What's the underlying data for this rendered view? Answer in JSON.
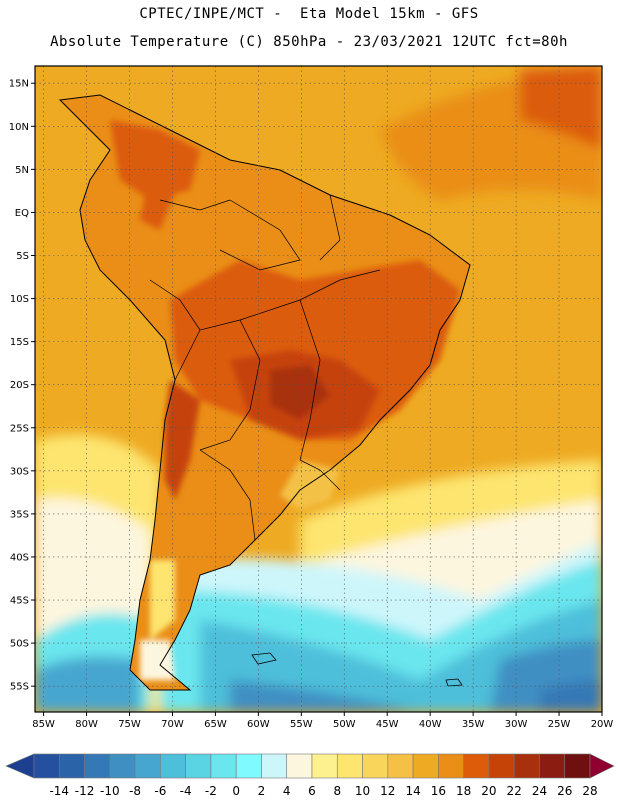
{
  "header": {
    "line1": "CPTEC/INPE/MCT -  Eta Model 15km - GFS",
    "line2": "Absolute Temperature (C) 850hPa - 23/03/2021 12UTC fct=80h"
  },
  "map": {
    "lat_labels": [
      "15N",
      "10N",
      "5N",
      "EQ",
      "5S",
      "10S",
      "15S",
      "20S",
      "25S",
      "30S",
      "35S",
      "40S",
      "45S",
      "50S",
      "55S"
    ],
    "lon_labels": [
      "85W",
      "80W",
      "75W",
      "70W",
      "65W",
      "60W",
      "55W",
      "50W",
      "45W",
      "40W",
      "35W",
      "30W",
      "25W",
      "20W"
    ],
    "extent": {
      "lon": [
        -86,
        -20
      ],
      "lat": [
        -58,
        17
      ]
    },
    "grid": "dotted"
  },
  "colorbar": {
    "labels": [
      "-14",
      "-12",
      "-10",
      "-8",
      "-6",
      "-4",
      "-2",
      "0",
      "2",
      "4",
      "6",
      "8",
      "10",
      "12",
      "14",
      "16",
      "18",
      "20",
      "22",
      "24",
      "26",
      "28"
    ],
    "colors": [
      "#1c3f8f",
      "#24509f",
      "#2b63a8",
      "#3578b6",
      "#3f8fc3",
      "#46a6cf",
      "#4ebfda",
      "#5ad3e3",
      "#6ae6ee",
      "#7ffaff",
      "#cdf6fb",
      "#fdf6df",
      "#fdf08e",
      "#fde56f",
      "#fad55c",
      "#f4c146",
      "#eeaa22",
      "#ea8e17",
      "#dc5c0a",
      "#c64308",
      "#a8300c",
      "#8a1c12",
      "#6e1010",
      "#8f0030"
    ]
  }
}
